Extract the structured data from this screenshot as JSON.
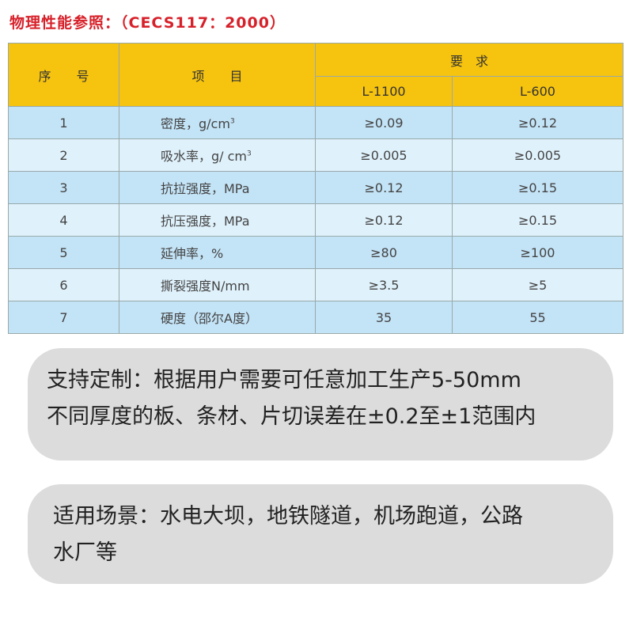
{
  "title": "物理性能参照：（CECS117：2000）",
  "table": {
    "headers": {
      "no": "序　　号",
      "item": "项　　目",
      "req": "要　求",
      "col1": "L-1100",
      "col2": "L-600"
    },
    "rows": [
      {
        "no": "1",
        "item": "密度，g/cm",
        "sup": "3",
        "v1": "≥0.09",
        "v2": "≥0.12"
      },
      {
        "no": "2",
        "item": "吸水率，g/ cm",
        "sup": "3",
        "v1": "≥0.005",
        "v2": "≥0.005"
      },
      {
        "no": "3",
        "item": "抗拉强度，MPa",
        "v1": "≥0.12",
        "v2": "≥0.15"
      },
      {
        "no": "4",
        "item": "抗压强度，MPa",
        "v1": "≥0.12",
        "v2": "≥0.15"
      },
      {
        "no": "5",
        "item": "延伸率，%",
        "v1": "≥80",
        "v2": "≥100"
      },
      {
        "no": "6",
        "item": "撕裂强度N/mm",
        "v1": "≥3.5",
        "v2": "≥5"
      },
      {
        "no": "7",
        "item": "硬度（邵尔A度）",
        "v1": "35",
        "v2": "55"
      }
    ]
  },
  "custom": {
    "line1": "支持定制：根据用户需要可任意加工生产5-50mm",
    "line2": "不同厚度的板、条材、片切误差在±0.2至±1范围内"
  },
  "scenes": {
    "line1": "适用场景：水电大坝，地铁隧道，机场跑道，公路",
    "line2": "水厂等"
  }
}
